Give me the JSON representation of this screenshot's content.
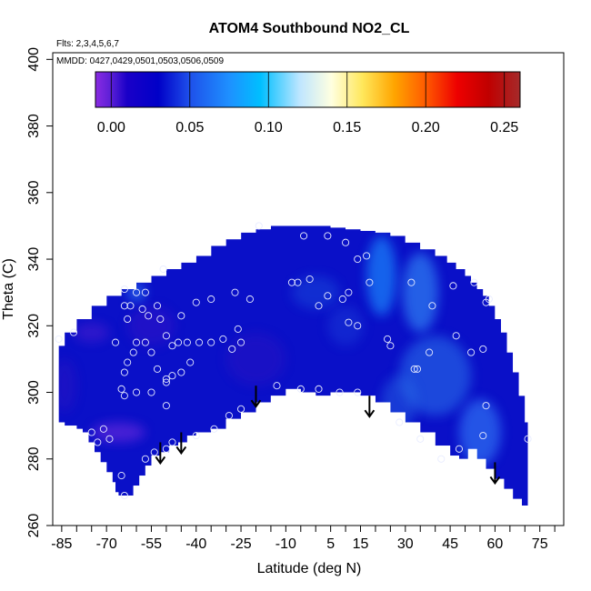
{
  "chart_data": {
    "type": "heatmap",
    "title": "ATOM4 Southbound NO2_CL",
    "annotations": [
      "Flts: 2,3,4,5,6,7",
      "MMDD: 0427,0429,0501,0503,0506,0509"
    ],
    "xlabel": "Latitude (deg N)",
    "ylabel": "Theta (C)",
    "xlim": [
      -88,
      83
    ],
    "ylim": [
      260,
      402
    ],
    "x_tick_labels": [
      -85,
      -70,
      -55,
      -40,
      -25,
      -10,
      5,
      15,
      30,
      45,
      60,
      75
    ],
    "x_minor_ticks": [
      -85,
      -80,
      -75,
      -70,
      -65,
      -60,
      -55,
      -50,
      -45,
      -40,
      -35,
      -30,
      -25,
      -20,
      -15,
      -10,
      -5,
      0,
      5,
      10,
      15,
      20,
      25,
      30,
      35,
      40,
      45,
      50,
      55,
      60,
      65,
      70,
      75,
      80
    ],
    "y_tick_labels": [
      260,
      280,
      300,
      320,
      340,
      360,
      380,
      400
    ],
    "colorbar": {
      "min": -0.01,
      "max": 0.26,
      "tick_labels": [
        "0.00",
        "0.05",
        "0.10",
        "0.15",
        "0.20",
        "0.25"
      ],
      "tick_values": [
        0.0,
        0.05,
        0.1,
        0.15,
        0.2,
        0.25
      ],
      "stops": [
        {
          "value": -0.01,
          "color": "#8a2be2"
        },
        {
          "value": 0.0,
          "color": "#5a1fd6"
        },
        {
          "value": 0.01,
          "color": "#1a00c8"
        },
        {
          "value": 0.03,
          "color": "#0000c8"
        },
        {
          "value": 0.05,
          "color": "#1e50ea"
        },
        {
          "value": 0.075,
          "color": "#1e90ff"
        },
        {
          "value": 0.095,
          "color": "#00bfff"
        },
        {
          "value": 0.12,
          "color": "#bfe6ff"
        },
        {
          "value": 0.14,
          "color": "#ffffe0"
        },
        {
          "value": 0.16,
          "color": "#ffe75a"
        },
        {
          "value": 0.18,
          "color": "#ffa500"
        },
        {
          "value": 0.2,
          "color": "#ff5a00"
        },
        {
          "value": 0.22,
          "color": "#ee0000"
        },
        {
          "value": 0.24,
          "color": "#c00000"
        },
        {
          "value": 0.26,
          "color": "#a52a2a"
        }
      ]
    },
    "field": {
      "base_color": "#0a10c8",
      "lower_boundary": [
        [
          -86,
          291
        ],
        [
          -85,
          291
        ],
        [
          -84,
          290
        ],
        [
          -82,
          290
        ],
        [
          -80,
          289
        ],
        [
          -78,
          288
        ],
        [
          -76,
          285
        ],
        [
          -74,
          282
        ],
        [
          -72,
          279
        ],
        [
          -70,
          276
        ],
        [
          -68,
          273
        ],
        [
          -67,
          270
        ],
        [
          -66,
          269
        ],
        [
          -64,
          269
        ],
        [
          -61,
          272
        ],
        [
          -59,
          275
        ],
        [
          -57,
          278
        ],
        [
          -55,
          281
        ],
        [
          -52,
          282
        ],
        [
          -49,
          284
        ],
        [
          -46,
          285
        ],
        [
          -43,
          287
        ],
        [
          -40,
          288
        ],
        [
          -35,
          289
        ],
        [
          -30,
          292
        ],
        [
          -25,
          294
        ],
        [
          -20,
          297
        ],
        [
          -15,
          299
        ],
        [
          -10,
          301
        ],
        [
          -5,
          300
        ],
        [
          0,
          299
        ],
        [
          5,
          300
        ],
        [
          10,
          300
        ],
        [
          15,
          299
        ],
        [
          20,
          297
        ],
        [
          25,
          294
        ],
        [
          30,
          291
        ],
        [
          35,
          288
        ],
        [
          40,
          284
        ],
        [
          45,
          281
        ],
        [
          48,
          280
        ],
        [
          51,
          283
        ],
        [
          54,
          280
        ],
        [
          57,
          277
        ],
        [
          60,
          274
        ],
        [
          63,
          271
        ],
        [
          66,
          268
        ],
        [
          69,
          266
        ],
        [
          71,
          265
        ]
      ],
      "upper_boundary": [
        [
          71,
          291
        ],
        [
          70,
          299
        ],
        [
          68,
          306
        ],
        [
          66,
          312
        ],
        [
          64,
          318
        ],
        [
          62,
          322
        ],
        [
          60,
          326
        ],
        [
          58,
          329
        ],
        [
          56,
          331
        ],
        [
          54,
          333
        ],
        [
          52,
          335
        ],
        [
          50,
          337
        ],
        [
          47,
          339
        ],
        [
          44,
          341
        ],
        [
          40,
          343
        ],
        [
          35,
          345
        ],
        [
          30,
          347
        ],
        [
          25,
          348
        ],
        [
          20,
          348.5
        ],
        [
          15,
          349
        ],
        [
          10,
          349.5
        ],
        [
          5,
          350
        ],
        [
          0,
          350
        ],
        [
          -5,
          350
        ],
        [
          -10,
          350
        ],
        [
          -15,
          349
        ],
        [
          -20,
          348
        ],
        [
          -25,
          346
        ],
        [
          -30,
          344
        ],
        [
          -35,
          341
        ],
        [
          -40,
          339
        ],
        [
          -45,
          337
        ],
        [
          -50,
          335
        ],
        [
          -55,
          333
        ],
        [
          -60,
          331
        ],
        [
          -65,
          329
        ],
        [
          -70,
          326
        ],
        [
          -75,
          322
        ],
        [
          -80,
          318
        ],
        [
          -84,
          314
        ],
        [
          -86,
          310
        ]
      ],
      "blobs": [
        {
          "lat": 22,
          "theta": 335,
          "rx": 5,
          "ry": 12,
          "color": "#1e90ff",
          "opacity": 0.65
        },
        {
          "lat": 35,
          "theta": 330,
          "rx": 6,
          "ry": 12,
          "color": "#3aa0ff",
          "opacity": 0.55
        },
        {
          "lat": 40,
          "theta": 305,
          "rx": 12,
          "ry": 12,
          "color": "#2f80f0",
          "opacity": 0.5
        },
        {
          "lat": 55,
          "theta": 288,
          "rx": 7,
          "ry": 10,
          "color": "#3a8cff",
          "opacity": 0.55
        },
        {
          "lat": 28,
          "theta": 297,
          "rx": 6,
          "ry": 8,
          "color": "#2a70e8",
          "opacity": 0.45
        },
        {
          "lat": 0,
          "theta": 330,
          "rx": 8,
          "ry": 5,
          "color": "#1e5ae0",
          "opacity": 0.4
        },
        {
          "lat": -60,
          "theta": 330,
          "rx": 3,
          "ry": 3,
          "color": "#3a9cff",
          "opacity": 0.5
        },
        {
          "lat": -66,
          "theta": 288,
          "rx": 9,
          "ry": 3,
          "color": "#7a2ee0",
          "opacity": 0.55
        },
        {
          "lat": -75,
          "theta": 318,
          "rx": 6,
          "ry": 3,
          "color": "#5a20d0",
          "opacity": 0.45
        },
        {
          "lat": -55,
          "theta": 320,
          "rx": 8,
          "ry": 6,
          "color": "#4a18c8",
          "opacity": 0.35
        },
        {
          "lat": -20,
          "theta": 310,
          "rx": 10,
          "ry": 8,
          "color": "#4018c0",
          "opacity": 0.3
        },
        {
          "lat": -84,
          "theta": 302,
          "rx": 4,
          "ry": 8,
          "color": "#3a14c0",
          "opacity": 0.35
        },
        {
          "lat": 10,
          "theta": 320,
          "rx": 6,
          "ry": 6,
          "color": "#2050e0",
          "opacity": 0.35
        }
      ]
    },
    "sample_points": [
      {
        "lat": -64,
        "theta": 331
      },
      {
        "lat": -60,
        "theta": 330
      },
      {
        "lat": -57,
        "theta": 330
      },
      {
        "lat": -51,
        "theta": 337
      },
      {
        "lat": -64,
        "theta": 326
      },
      {
        "lat": -62,
        "theta": 326
      },
      {
        "lat": -63,
        "theta": 322
      },
      {
        "lat": -58,
        "theta": 325
      },
      {
        "lat": -56,
        "theta": 323
      },
      {
        "lat": -53,
        "theta": 326
      },
      {
        "lat": -52,
        "theta": 322
      },
      {
        "lat": -45,
        "theta": 323
      },
      {
        "lat": -40,
        "theta": 327
      },
      {
        "lat": -35,
        "theta": 328
      },
      {
        "lat": -27,
        "theta": 330
      },
      {
        "lat": -22,
        "theta": 328
      },
      {
        "lat": -67,
        "theta": 315
      },
      {
        "lat": -60,
        "theta": 315
      },
      {
        "lat": -57,
        "theta": 315
      },
      {
        "lat": -55,
        "theta": 312
      },
      {
        "lat": -50,
        "theta": 317
      },
      {
        "lat": -48,
        "theta": 314
      },
      {
        "lat": -46,
        "theta": 315
      },
      {
        "lat": -43,
        "theta": 315
      },
      {
        "lat": -39,
        "theta": 315
      },
      {
        "lat": -35,
        "theta": 315
      },
      {
        "lat": -31,
        "theta": 316
      },
      {
        "lat": -26,
        "theta": 319
      },
      {
        "lat": -25,
        "theta": 315
      },
      {
        "lat": -28,
        "theta": 313
      },
      {
        "lat": -53,
        "theta": 307
      },
      {
        "lat": -50,
        "theta": 304
      },
      {
        "lat": -48,
        "theta": 305
      },
      {
        "lat": -45,
        "theta": 306
      },
      {
        "lat": -42,
        "theta": 309
      },
      {
        "lat": -61,
        "theta": 312
      },
      {
        "lat": -64,
        "theta": 306
      },
      {
        "lat": -63,
        "theta": 309
      },
      {
        "lat": -65,
        "theta": 301
      },
      {
        "lat": -64,
        "theta": 299
      },
      {
        "lat": -60,
        "theta": 300
      },
      {
        "lat": -55,
        "theta": 300
      },
      {
        "lat": -50,
        "theta": 303
      },
      {
        "lat": -50,
        "theta": 296
      },
      {
        "lat": -75,
        "theta": 288
      },
      {
        "lat": -71,
        "theta": 289
      },
      {
        "lat": -73,
        "theta": 285
      },
      {
        "lat": -69,
        "theta": 286
      },
      {
        "lat": -54,
        "theta": 282
      },
      {
        "lat": -50,
        "theta": 283
      },
      {
        "lat": -48,
        "theta": 285
      },
      {
        "lat": -40,
        "theta": 287
      },
      {
        "lat": -34,
        "theta": 289
      },
      {
        "lat": -29,
        "theta": 293
      },
      {
        "lat": -25,
        "theta": 295
      },
      {
        "lat": -65,
        "theta": 275
      },
      {
        "lat": -64,
        "theta": 269
      },
      {
        "lat": -57,
        "theta": 280
      },
      {
        "lat": -19,
        "theta": 350
      },
      {
        "lat": -8,
        "theta": 333
      },
      {
        "lat": -6,
        "theta": 333
      },
      {
        "lat": -2,
        "theta": 334
      },
      {
        "lat": 1,
        "theta": 326
      },
      {
        "lat": 4,
        "theta": 329
      },
      {
        "lat": 9,
        "theta": 328
      },
      {
        "lat": 11,
        "theta": 330
      },
      {
        "lat": 11,
        "theta": 321
      },
      {
        "lat": 14,
        "theta": 320
      },
      {
        "lat": 18,
        "theta": 333
      },
      {
        "lat": 14,
        "theta": 340
      },
      {
        "lat": 17,
        "theta": 341
      },
      {
        "lat": 10,
        "theta": 345
      },
      {
        "lat": 4,
        "theta": 347
      },
      {
        "lat": -4,
        "theta": 347
      },
      {
        "lat": 24,
        "theta": 316
      },
      {
        "lat": 25,
        "theta": 314
      },
      {
        "lat": 33,
        "theta": 307
      },
      {
        "lat": 34,
        "theta": 307
      },
      {
        "lat": 38,
        "theta": 312
      },
      {
        "lat": 39,
        "theta": 326
      },
      {
        "lat": 32,
        "theta": 333
      },
      {
        "lat": 46,
        "theta": 332
      },
      {
        "lat": 47,
        "theta": 317
      },
      {
        "lat": 52,
        "theta": 312
      },
      {
        "lat": 56,
        "theta": 313
      },
      {
        "lat": 57,
        "theta": 327
      },
      {
        "lat": 53,
        "theta": 333
      },
      {
        "lat": 58,
        "theta": 328
      },
      {
        "lat": 28,
        "theta": 291
      },
      {
        "lat": 35,
        "theta": 286
      },
      {
        "lat": 42,
        "theta": 280
      },
      {
        "lat": 48,
        "theta": 283
      },
      {
        "lat": 57,
        "theta": 296
      },
      {
        "lat": 56,
        "theta": 287
      },
      {
        "lat": 71,
        "theta": 286
      },
      {
        "lat": -13,
        "theta": 302
      },
      {
        "lat": -5,
        "theta": 301
      },
      {
        "lat": 1,
        "theta": 301
      },
      {
        "lat": 8,
        "theta": 300
      },
      {
        "lat": 14,
        "theta": 300
      },
      {
        "lat": -81,
        "theta": 318
      },
      {
        "lat": -86,
        "theta": 316
      }
    ],
    "flight_markers": [
      {
        "lat": -52,
        "theta_top": 285,
        "theta_bottom": 279
      },
      {
        "lat": -45,
        "theta_top": 288,
        "theta_bottom": 282
      },
      {
        "lat": -20,
        "theta_top": 302,
        "theta_bottom": 296
      },
      {
        "lat": 18,
        "theta_top": 299,
        "theta_bottom": 293
      },
      {
        "lat": 60,
        "theta_top": 279,
        "theta_bottom": 273
      }
    ]
  }
}
